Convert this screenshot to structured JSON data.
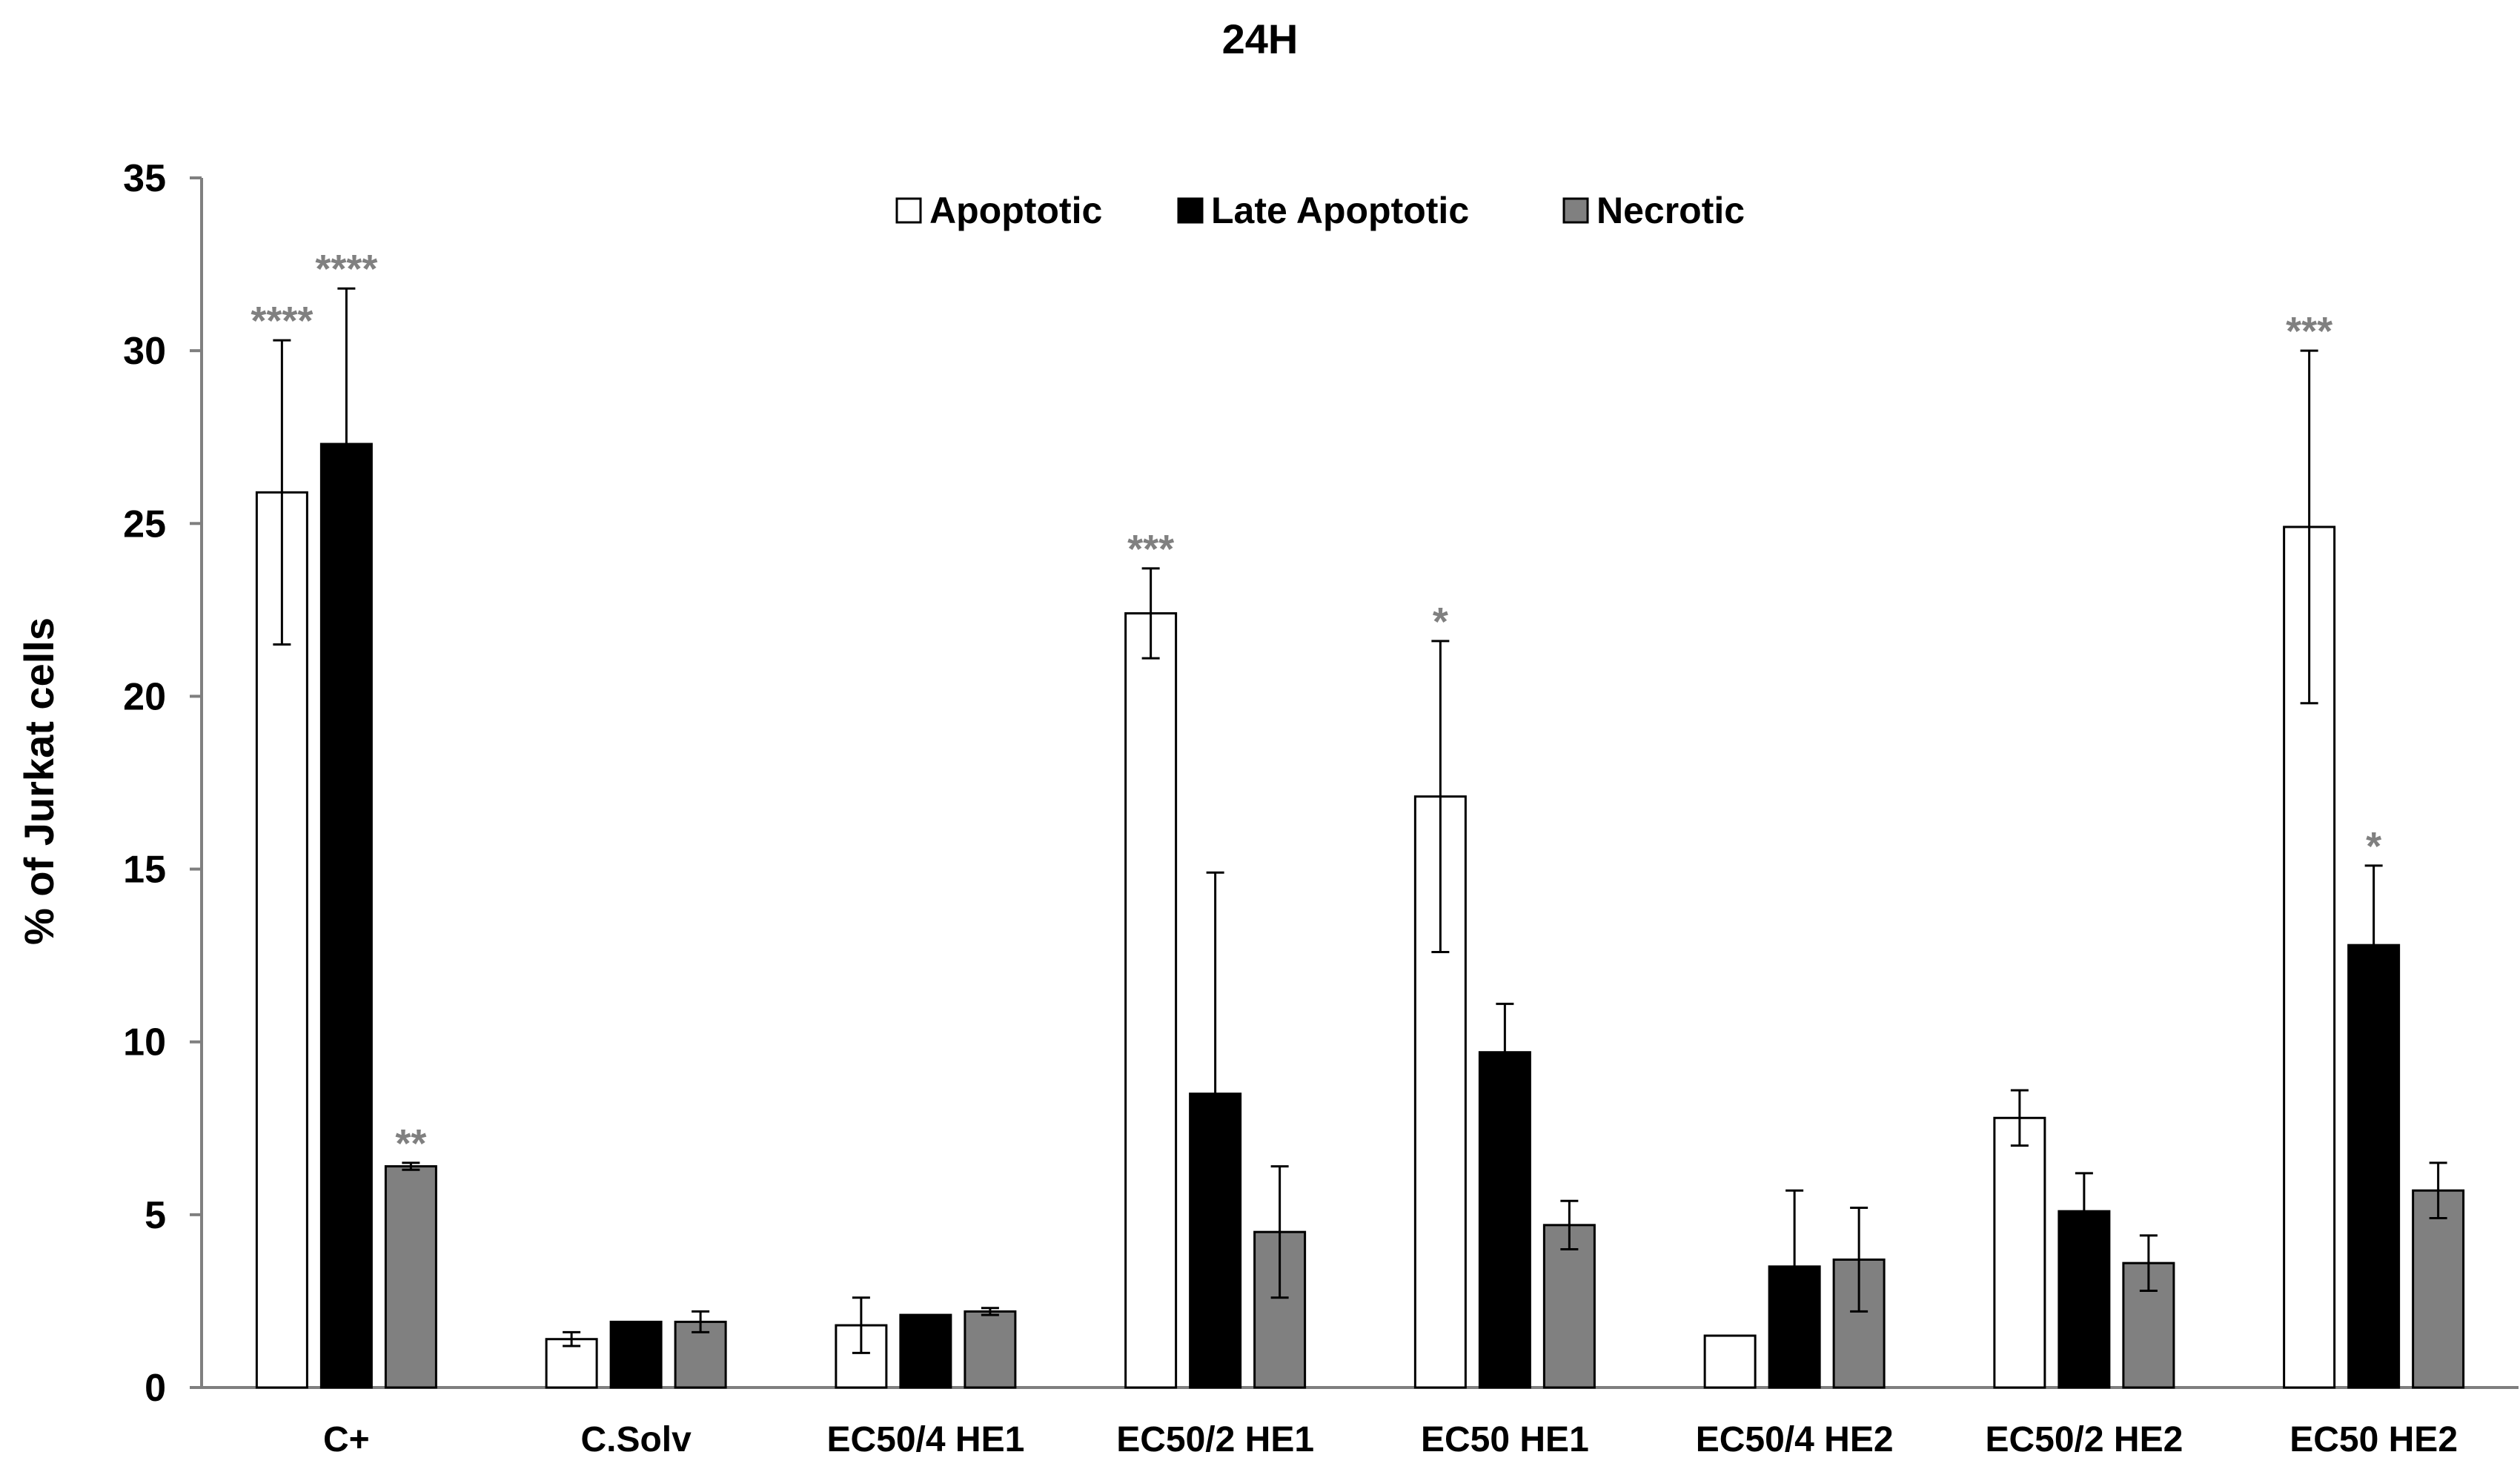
{
  "chart_data": {
    "type": "bar",
    "title": "24H",
    "xlabel": "",
    "ylabel": "% of Jurkat cells",
    "ylim": [
      0,
      35
    ],
    "yticks": [
      0,
      5,
      10,
      15,
      20,
      25,
      30,
      35
    ],
    "grid": false,
    "legend_position": "top-center",
    "categories": [
      "C+",
      "C.Solv",
      "EC50/4 HE1",
      "EC50/2 HE1",
      "EC50 HE1",
      "EC50/4 HE2",
      "EC50/2 HE2",
      "EC50 HE2"
    ],
    "series": [
      {
        "name": "Apoptotic",
        "color": "#ffffff",
        "values": [
          25.9,
          1.4,
          1.8,
          22.4,
          17.1,
          1.5,
          7.8,
          24.9
        ],
        "errors": [
          4.4,
          0.2,
          0.8,
          1.3,
          4.5,
          0.0,
          0.8,
          5.1
        ],
        "significance": [
          "****",
          "",
          "",
          "***",
          "*",
          "",
          "",
          "***"
        ]
      },
      {
        "name": "Late Apoptotic",
        "color": "#000000",
        "values": [
          27.3,
          1.9,
          2.1,
          8.5,
          9.7,
          3.5,
          5.1,
          12.8
        ],
        "errors": [
          4.5,
          0.0,
          0.0,
          6.4,
          1.4,
          2.2,
          1.1,
          2.3
        ],
        "significance": [
          "****",
          "",
          "",
          "",
          "",
          "",
          "",
          "*"
        ]
      },
      {
        "name": "Necrotic",
        "color": "#808080",
        "values": [
          6.4,
          1.9,
          2.2,
          4.5,
          4.7,
          3.7,
          3.6,
          5.7
        ],
        "errors": [
          0.1,
          0.3,
          0.1,
          1.9,
          0.7,
          1.5,
          0.8,
          0.8
        ],
        "significance": [
          "**",
          "",
          "",
          "",
          "",
          "",
          "",
          ""
        ]
      }
    ]
  }
}
